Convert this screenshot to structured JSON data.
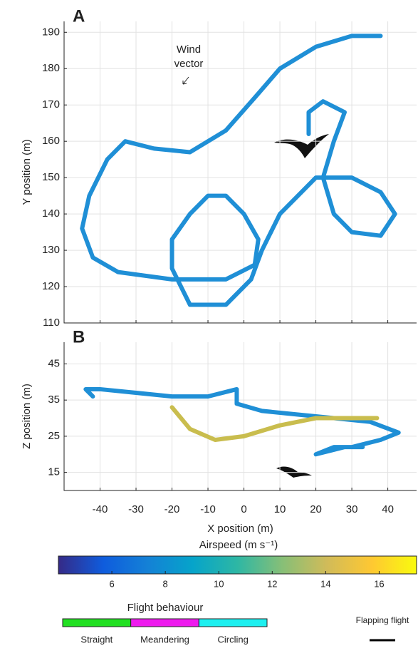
{
  "chart_data": [
    {
      "type": "line",
      "panel_label": "A",
      "annotation": "Wind vector",
      "ylabel": "Y position (m)",
      "xlim": [
        -50,
        48
      ],
      "ylim": [
        110,
        193
      ],
      "xticks": [
        -40,
        -30,
        -20,
        -10,
        0,
        10,
        20,
        30,
        40
      ],
      "yticks": [
        110,
        120,
        130,
        140,
        150,
        160,
        170,
        180,
        190
      ],
      "grid": true,
      "series": [
        {
          "color": "#1f8fd6",
          "x": [
            38,
            30,
            20,
            10,
            3,
            -5,
            -15,
            -25,
            -33,
            -38,
            -43,
            -45,
            -42,
            -35,
            -20,
            -5,
            3,
            4,
            0,
            -5,
            -10,
            -15,
            -20,
            -20,
            -15,
            -5,
            2,
            5,
            10,
            20,
            30,
            38,
            42,
            38,
            30,
            25,
            22,
            25,
            28,
            22,
            18,
            18
          ],
          "values": [
            189,
            189,
            186,
            180,
            172,
            163,
            157,
            158,
            160,
            155,
            145,
            136,
            128,
            124,
            122,
            122,
            126,
            133,
            140,
            145,
            145,
            140,
            133,
            125,
            115,
            115,
            122,
            130,
            140,
            150,
            150,
            146,
            140,
            134,
            135,
            140,
            150,
            160,
            168,
            171,
            168,
            162
          ]
        }
      ]
    },
    {
      "type": "line",
      "panel_label": "B",
      "xlabel": "X position (m)",
      "ylabel": "Z position (m)",
      "xlim": [
        -50,
        48
      ],
      "ylim": [
        10,
        51
      ],
      "xticks": [
        -40,
        -30,
        -20,
        -10,
        0,
        10,
        20,
        30,
        40
      ],
      "yticks": [
        15,
        25,
        35,
        45
      ],
      "grid": true,
      "series": [
        {
          "color": "#1f8fd6",
          "x": [
            -42,
            -44,
            -40,
            -30,
            -20,
            -10,
            -2,
            -2,
            5,
            15,
            25,
            35,
            43,
            38,
            30,
            25,
            20,
            28,
            33
          ],
          "values": [
            36,
            38,
            38,
            37,
            36,
            36,
            38,
            34,
            32,
            31,
            30,
            29,
            26,
            24,
            22,
            22,
            20,
            22,
            22
          ]
        },
        {
          "color": "#c9bd4e",
          "x": [
            -20,
            -15,
            -8,
            0,
            10,
            20,
            37
          ],
          "values": [
            33,
            27,
            24,
            25,
            28,
            30,
            30
          ]
        }
      ]
    }
  ],
  "colorbar": {
    "title": "Airspeed  (m s⁻¹)",
    "lim": [
      4,
      17.4
    ],
    "ticks": [
      6,
      8,
      10,
      12,
      14,
      16
    ],
    "colors": [
      "#352a87",
      "#0f5cdd",
      "#1481d6",
      "#06a4ca",
      "#2eb7a4",
      "#87bf77",
      "#d1bb59",
      "#fec832",
      "#f9fb0e"
    ]
  },
  "behaviour_legend": {
    "title": "Flight behaviour",
    "items": [
      {
        "name": "Straight",
        "color": "#22e022"
      },
      {
        "name": "Meandering",
        "color": "#ee1aee"
      },
      {
        "name": "Circling",
        "color": "#1ef0f0"
      }
    ],
    "flapping_label": "Flapping flight"
  }
}
